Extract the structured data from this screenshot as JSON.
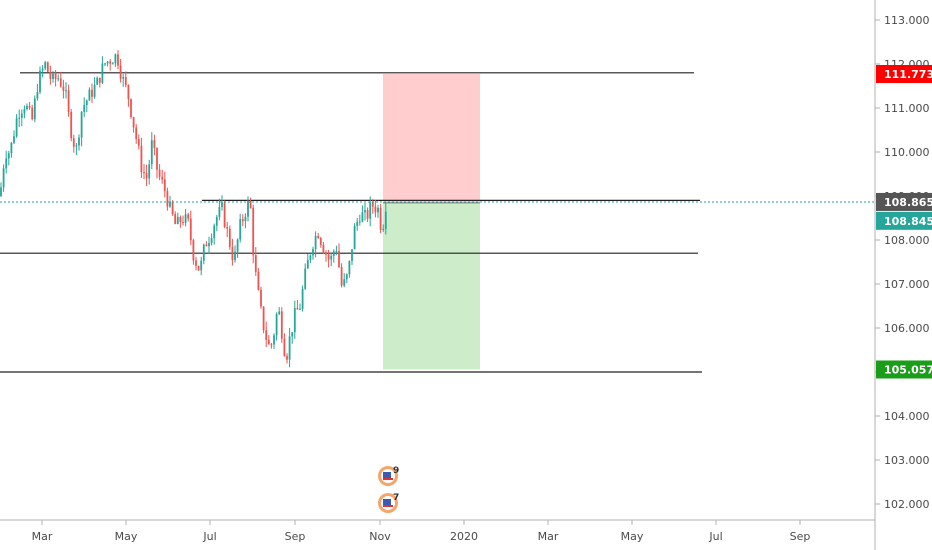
{
  "chart_data": {
    "type": "candlestick",
    "symbol_range": [
      102,
      113
    ],
    "ylim": [
      101.7,
      113.3
    ],
    "y_ticks": [
      "113.000",
      "112.000",
      "111.000",
      "110.000",
      "109.000",
      "108.000",
      "107.000",
      "106.000",
      "105.000",
      "104.000",
      "103.000",
      "102.000"
    ],
    "x_ticks": [
      "Mar",
      "May",
      "Jul",
      "Sep",
      "Nov",
      "2020",
      "Mar",
      "May",
      "Jul",
      "Sep"
    ],
    "up_color": "#26a69a",
    "down_color": "#ef5350",
    "horizontal_levels": [
      111.8,
      108.9,
      107.7,
      105.0
    ],
    "last_price": 108.865,
    "badges": [
      {
        "label": "111.773",
        "value": 111.773,
        "color": "#ff0000"
      },
      {
        "label": "108.865",
        "value": 108.865,
        "color": "#555555"
      },
      {
        "label": "108.845",
        "value": 108.845,
        "color": "#26a69a"
      },
      {
        "label": "105.057",
        "value": 105.057,
        "color": "#1a9e1a"
      }
    ],
    "position": {
      "entry": 108.845,
      "stop": 111.773,
      "target": 105.057,
      "risk_color": "#ffcdcd",
      "reward_color": "#cdecc9"
    },
    "price_path": [
      [
        0,
        109.0
      ],
      [
        5,
        110.0
      ],
      [
        10,
        110.0
      ],
      [
        18,
        110.9
      ],
      [
        25,
        111.1
      ],
      [
        32,
        110.7
      ],
      [
        38,
        111.6
      ],
      [
        45,
        112.0
      ],
      [
        52,
        111.6
      ],
      [
        58,
        111.7
      ],
      [
        65,
        111.4
      ],
      [
        70,
        110.6
      ],
      [
        76,
        110.0
      ],
      [
        82,
        111.0
      ],
      [
        90,
        111.3
      ],
      [
        98,
        111.6
      ],
      [
        104,
        112.0
      ],
      [
        110,
        112.1
      ],
      [
        117,
        112.2
      ],
      [
        122,
        111.7
      ],
      [
        128,
        111.3
      ],
      [
        133,
        110.7
      ],
      [
        138,
        110.1
      ],
      [
        142,
        109.6
      ],
      [
        147,
        109.4
      ],
      [
        152,
        110.2
      ],
      [
        158,
        109.5
      ],
      [
        164,
        109.2
      ],
      [
        170,
        108.7
      ],
      [
        176,
        108.3
      ],
      [
        182,
        108.5
      ],
      [
        188,
        108.4
      ],
      [
        194,
        107.6
      ],
      [
        200,
        107.3
      ],
      [
        205,
        107.9
      ],
      [
        210,
        108.1
      ],
      [
        216,
        108.5
      ],
      [
        222,
        108.7
      ],
      [
        228,
        108.1
      ],
      [
        234,
        107.5
      ],
      [
        240,
        108.3
      ],
      [
        246,
        108.7
      ],
      [
        250,
        108.9
      ],
      [
        254,
        107.5
      ],
      [
        258,
        106.8
      ],
      [
        262,
        106.2
      ],
      [
        266,
        105.8
      ],
      [
        270,
        105.5
      ],
      [
        274,
        105.9
      ],
      [
        278,
        106.5
      ],
      [
        282,
        105.9
      ],
      [
        286,
        105.3
      ],
      [
        290,
        105.8
      ],
      [
        295,
        106.3
      ],
      [
        300,
        106.5
      ],
      [
        306,
        107.3
      ],
      [
        312,
        107.9
      ],
      [
        318,
        108.2
      ],
      [
        324,
        107.8
      ],
      [
        330,
        107.5
      ],
      [
        336,
        107.9
      ],
      [
        342,
        106.9
      ],
      [
        348,
        107.2
      ],
      [
        354,
        108.2
      ],
      [
        360,
        108.6
      ],
      [
        366,
        108.5
      ],
      [
        372,
        108.8
      ],
      [
        378,
        108.7
      ],
      [
        382,
        108.2
      ],
      [
        386,
        108.85
      ]
    ],
    "events": [
      {
        "label": "9"
      },
      {
        "label": "7"
      }
    ]
  }
}
